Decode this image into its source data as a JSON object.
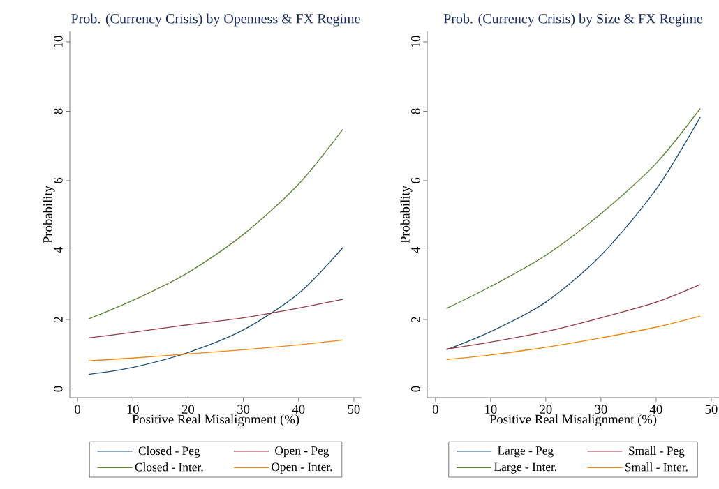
{
  "chart_data": [
    {
      "type": "line",
      "title": "Prob. (Currency Crisis) by Openness & FX Regime",
      "xlabel": "Positive Real Misalignment (%)",
      "ylabel": "Probability",
      "x": [
        2,
        10,
        20,
        30,
        40,
        48
      ],
      "xlim": [
        -1.4,
        51.4
      ],
      "ylim": [
        -0.25,
        10.3
      ],
      "xticks": [
        0,
        10,
        20,
        30,
        40,
        50
      ],
      "yticks": [
        0,
        2,
        4,
        6,
        8,
        10
      ],
      "legend": "bottom",
      "series": [
        {
          "name": "Closed - Peg",
          "color": "#1f4e79",
          "values": [
            0.42,
            0.62,
            1.05,
            1.7,
            2.75,
            4.07
          ]
        },
        {
          "name": "Open - Peg",
          "color": "#963a45",
          "values": [
            1.47,
            1.63,
            1.85,
            2.05,
            2.33,
            2.58
          ]
        },
        {
          "name": "Closed - Inter.",
          "color": "#5a8431",
          "values": [
            2.02,
            2.55,
            3.35,
            4.45,
            5.9,
            7.48
          ]
        },
        {
          "name": "Open - Inter.",
          "color": "#f0870a",
          "values": [
            0.81,
            0.89,
            1.01,
            1.13,
            1.27,
            1.41
          ]
        }
      ]
    },
    {
      "type": "line",
      "title": "Prob. (Currency Crisis) by Size & FX Regime",
      "xlabel": "Positive Real Misalignment (%)",
      "ylabel": "Probability",
      "x": [
        2,
        10,
        20,
        30,
        40,
        48
      ],
      "xlim": [
        -1.5,
        51.4
      ],
      "ylim": [
        -0.25,
        10.3
      ],
      "xticks": [
        0,
        10,
        20,
        30,
        40,
        50
      ],
      "yticks": [
        0,
        2,
        4,
        6,
        8,
        10
      ],
      "legend": "bottom",
      "series": [
        {
          "name": "Large - Peg",
          "color": "#1f4e79",
          "values": [
            1.13,
            1.65,
            2.5,
            3.85,
            5.75,
            7.83
          ]
        },
        {
          "name": "Small - Peg",
          "color": "#963a45",
          "values": [
            1.15,
            1.35,
            1.65,
            2.05,
            2.5,
            3.01
          ]
        },
        {
          "name": "Large - Inter.",
          "color": "#5a8431",
          "values": [
            2.32,
            2.95,
            3.85,
            5.05,
            6.5,
            8.08
          ]
        },
        {
          "name": "Small - Inter.",
          "color": "#f0870a",
          "values": [
            0.85,
            0.98,
            1.2,
            1.47,
            1.78,
            2.1
          ]
        }
      ]
    }
  ]
}
